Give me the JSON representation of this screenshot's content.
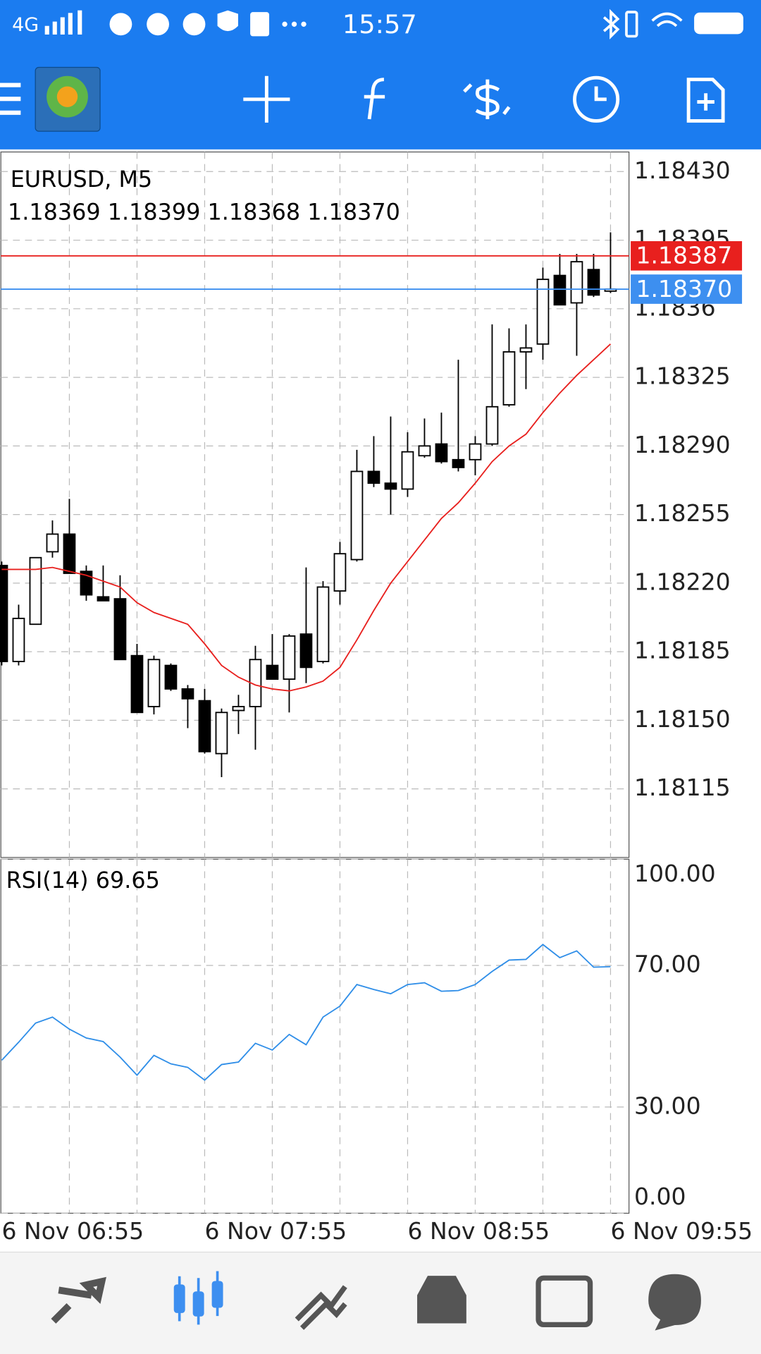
{
  "status_bar": {
    "network": "4G",
    "time": "15:57"
  },
  "chart_data": [
    {
      "type": "candlestick",
      "title": "EURUSD, M5",
      "subtitle": "1.18369 1.18399 1.18368 1.18370",
      "categories": [
        "6 Nov 06:55",
        null,
        null,
        null,
        null,
        null,
        null,
        null,
        null,
        null,
        null,
        null,
        "6 Nov 07:55",
        null,
        null,
        null,
        null,
        null,
        null,
        null,
        null,
        null,
        null,
        null,
        "6 Nov 08:55",
        null,
        null,
        null,
        null,
        null,
        null,
        null,
        null,
        null,
        null,
        null,
        "6 Nov 09:55"
      ],
      "open": [
        1.18229,
        1.1818,
        1.18199,
        1.18236,
        1.18245,
        1.18226,
        1.18213,
        1.18212,
        1.18183,
        1.18157,
        1.18178,
        1.18166,
        1.1816,
        1.18133,
        1.18155,
        1.18157,
        1.18178,
        1.18171,
        1.18194,
        1.1818,
        1.18216,
        1.18232,
        1.18277,
        1.18271,
        1.18268,
        1.18285,
        1.18291,
        1.18283,
        1.18283,
        1.18291,
        1.18311,
        1.18338,
        1.18342,
        1.18377,
        1.18363,
        1.1838,
        1.18369
      ],
      "high": [
        1.18231,
        1.18209,
        1.18233,
        1.18252,
        1.18263,
        1.18229,
        1.18229,
        1.18224,
        1.18189,
        1.18183,
        1.18179,
        1.18168,
        1.18166,
        1.18156,
        1.18163,
        1.18188,
        1.18194,
        1.18194,
        1.18228,
        1.18221,
        1.18241,
        1.18288,
        1.18295,
        1.18305,
        1.18297,
        1.18304,
        1.18307,
        1.18334,
        1.18295,
        1.18352,
        1.1835,
        1.18352,
        1.18381,
        1.18388,
        1.18388,
        1.18388,
        1.18399
      ],
      "low": [
        1.18178,
        1.18178,
        1.18199,
        1.18233,
        1.18225,
        1.18211,
        1.18211,
        1.18181,
        1.18154,
        1.18153,
        1.18165,
        1.18146,
        1.18133,
        1.18121,
        1.18143,
        1.18135,
        1.18171,
        1.18154,
        1.18169,
        1.18179,
        1.18209,
        1.18231,
        1.18269,
        1.18255,
        1.18264,
        1.18284,
        1.18281,
        1.18277,
        1.18275,
        1.1829,
        1.1831,
        1.18319,
        1.18334,
        1.18362,
        1.18336,
        1.18366,
        1.18368
      ],
      "close": [
        1.1818,
        1.18202,
        1.18233,
        1.18245,
        1.18225,
        1.18214,
        1.18211,
        1.18181,
        1.18154,
        1.18181,
        1.18166,
        1.18161,
        1.18134,
        1.18154,
        1.18157,
        1.18181,
        1.18171,
        1.18193,
        1.18177,
        1.18218,
        1.18235,
        1.18277,
        1.18271,
        1.18268,
        1.18287,
        1.1829,
        1.18282,
        1.18279,
        1.18291,
        1.1831,
        1.18338,
        1.1834,
        1.18375,
        1.18362,
        1.18384,
        1.18367,
        1.1837
      ],
      "up_color": "#ffffff",
      "down_color": "#000000",
      "series": [
        {
          "color": "#e8201e",
          "values": [
            1.18227,
            1.18227,
            1.18227,
            1.18228,
            1.18226,
            1.18224,
            1.18221,
            1.18218,
            1.1821,
            1.18205,
            1.18202,
            1.18199,
            1.18189,
            1.18178,
            1.18172,
            1.18168,
            1.18166,
            1.18165,
            1.18167,
            1.1817,
            1.18177,
            1.18191,
            1.18206,
            1.1822,
            1.18231,
            1.18242,
            1.18253,
            1.18261,
            1.18271,
            1.18282,
            1.1829,
            1.18296,
            1.18307,
            1.18317,
            1.18326,
            1.18334,
            1.18342
          ]
        }
      ],
      "price_lines": [
        {
          "value": 1.18387,
          "color": "#e8201e"
        },
        {
          "value": 1.1837,
          "label": "1.18370",
          "color": "#3d8ff0"
        }
      ],
      "ylim": [
        1.1808,
        1.1844
      ],
      "yticks": [
        {
          "value": 1.1843,
          "label": "1.18430"
        },
        1.18395,
        1.1836,
        1.18325,
        {
          "value": 1.1829,
          "label": "1.18290"
        },
        1.18255,
        {
          "value": 1.1822,
          "label": "1.18220"
        },
        1.18185,
        {
          "value": 1.1815,
          "label": "1.18150"
        },
        1.18115
      ],
      "grid": true
    },
    {
      "type": "line",
      "title": "RSI(14) 69.65",
      "color": "#2f8ee8",
      "values": [
        43.2,
        48.3,
        53.7,
        55.4,
        52,
        49.5,
        48.5,
        44.1,
        39,
        44.6,
        42.2,
        41.2,
        37.6,
        42,
        42.7,
        48,
        46.1,
        50.5,
        47.6,
        55.4,
        58.5,
        64.6,
        63.2,
        62,
        64.6,
        65.1,
        62.7,
        62.9,
        64.6,
        68.3,
        71.5,
        71.7,
        75.9,
        72.2,
        74.1,
        69.5,
        69.65
      ],
      "ylim": [
        0,
        100
      ],
      "yticks": [
        {
          "value": 100,
          "label": "100.00"
        },
        {
          "value": 70,
          "label": "70.00"
        },
        {
          "value": 30,
          "label": "30.00"
        },
        {
          "value": 0,
          "label": "0.00"
        }
      ],
      "grid": true
    }
  ]
}
